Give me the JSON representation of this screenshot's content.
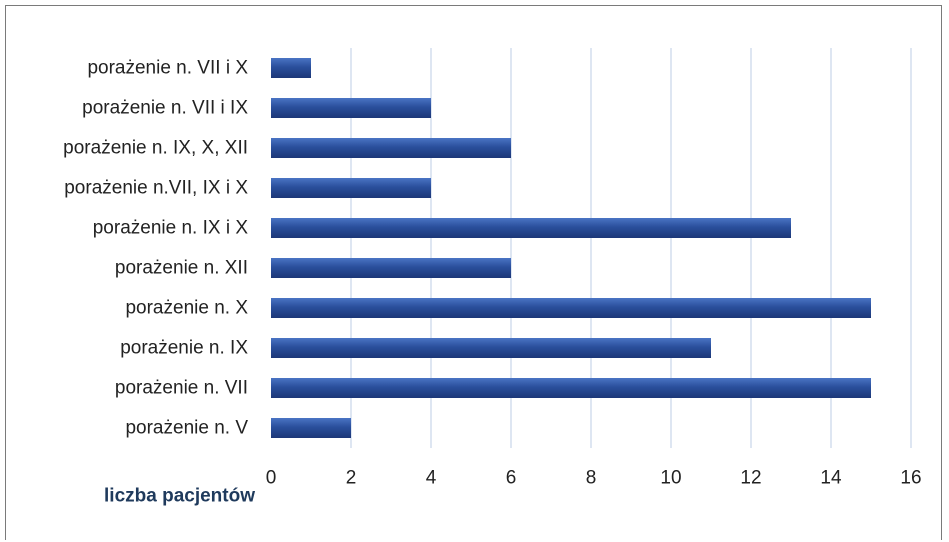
{
  "chart_data": {
    "type": "bar",
    "orientation": "horizontal",
    "categories": [
      "porażenie n. V",
      "porażenie n. VII",
      "porażenie n. IX",
      "porażenie n. X",
      "porażenie n. XII",
      "porażenie n. IX i X",
      "porażenie n.VII, IX i X",
      "porażenie n. IX, X, XII",
      "porażenie n. VII i IX",
      "porażenie n. VII i X"
    ],
    "values": [
      2,
      15,
      11,
      15,
      6,
      13,
      4,
      6,
      4,
      1
    ],
    "xlabel": "liczba pacjentów",
    "ylabel": "",
    "title": "",
    "xlim": [
      0,
      16
    ],
    "xticks": [
      0,
      2,
      4,
      6,
      8,
      10,
      12,
      14,
      16
    ],
    "grid": true,
    "legend": "none",
    "colors": {
      "bar": "#2a4f9c",
      "bar_dark": "#1c3777",
      "bar_light": "#4a74c4",
      "grid": "#c9d6ea",
      "axis_title": "#1f3a5c"
    }
  }
}
